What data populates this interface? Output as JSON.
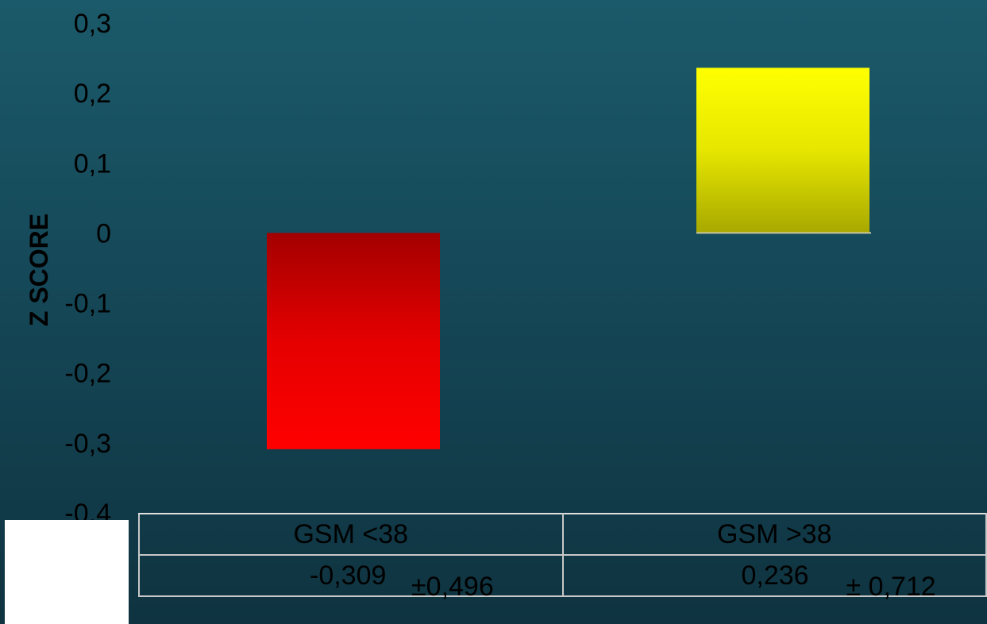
{
  "chart_data": {
    "type": "bar",
    "ylabel": "Z SCORE",
    "ylim": [
      -0.4,
      0.3
    ],
    "yticks": [
      "0,3",
      "0,2",
      "0,1",
      "0",
      "-0,1",
      "-0,2",
      "-0,3",
      "-0,4"
    ],
    "categories": [
      "GSM <38",
      "GSM >38"
    ],
    "values": [
      -0.309,
      0.236
    ],
    "colors": [
      "#ff0000",
      "#ffff00"
    ],
    "grid": false,
    "table": {
      "headers": [
        "GSM <38",
        "GSM >38"
      ],
      "means": [
        "-0,309",
        "0,236"
      ],
      "sds": [
        "±0,496",
        "± 0,712"
      ]
    }
  }
}
